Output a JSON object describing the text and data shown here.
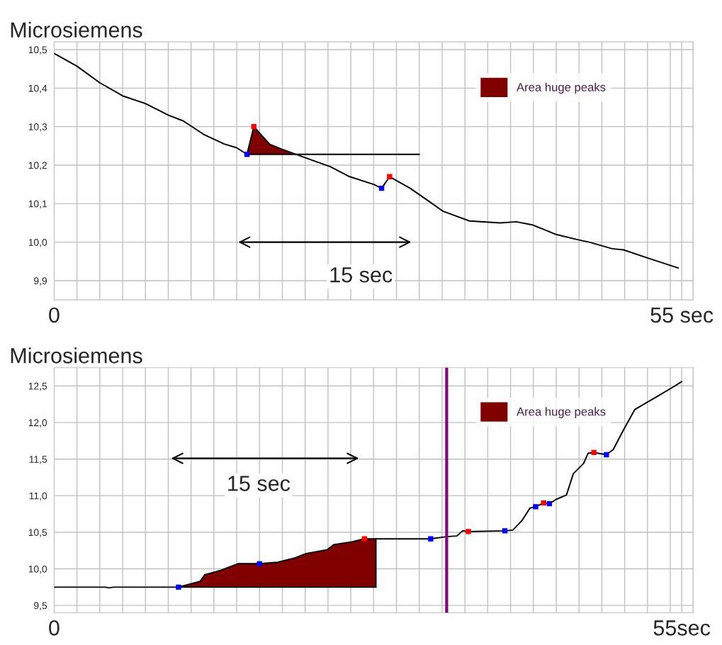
{
  "chart_data": [
    {
      "type": "line",
      "ylabel": "Microsiemens",
      "xlim": [
        0,
        56
      ],
      "xticks": [
        0,
        {
          "value": 55,
          "label": "55 sec"
        }
      ],
      "ylim": [
        9.85,
        10.52
      ],
      "yticks": [
        {
          "value": 9.9,
          "label": "9,9"
        },
        {
          "value": 10.0,
          "label": "10,0"
        },
        {
          "value": 10.1,
          "label": "10,1"
        },
        {
          "value": 10.2,
          "label": "10,2"
        },
        {
          "value": 10.3,
          "label": "10,3"
        },
        {
          "value": 10.4,
          "label": "10,4"
        },
        {
          "value": 10.5,
          "label": "10,5"
        }
      ],
      "grid": true,
      "legend": "top right",
      "annotations": [
        "15 sec"
      ],
      "series": [
        {
          "type": "area",
          "name": "Area huge peaks",
          "color": "#800000",
          "x": [
            16.9,
            17.5,
            18.9,
            19.9,
            21.0
          ],
          "values": [
            10.228,
            10.3,
            10.254,
            10.242,
            10.228
          ]
        },
        {
          "color": "#000000",
          "x": [
            0,
            2.0,
            4.0,
            6.0,
            8.0,
            10.0,
            11.3,
            13.1,
            14.9,
            16.0,
            16.9,
            17.5,
            18.9,
            19.9,
            21.0,
            22.5,
            24.2,
            25.9,
            28.0,
            28.7,
            29.4,
            31.2,
            32.9,
            34.1,
            36.4,
            39.1,
            40.5,
            41.9,
            44.0,
            45.8,
            46.9,
            48.9,
            49.9,
            51.9,
            54.7
          ],
          "values": [
            10.49,
            10.457,
            10.414,
            10.38,
            10.36,
            10.33,
            10.315,
            10.28,
            10.255,
            10.245,
            10.228,
            10.3,
            10.254,
            10.242,
            10.23,
            10.214,
            10.196,
            10.17,
            10.15,
            10.14,
            10.17,
            10.14,
            10.105,
            10.08,
            10.055,
            10.05,
            10.053,
            10.045,
            10.02,
            10.007,
            10.0,
            9.983,
            9.98,
            9.96,
            9.933
          ]
        },
        {
          "color": "#000000",
          "x": [
            16.9,
            32.0
          ],
          "values": [
            10.228,
            10.228
          ]
        },
        {
          "type": "scatter",
          "color": "#0000ff",
          "marker": "square",
          "x": [
            16.9,
            28.7
          ],
          "values": [
            10.228,
            10.14
          ]
        },
        {
          "type": "scatter",
          "color": "#ff0000",
          "marker": "square",
          "x": [
            17.5,
            29.4
          ],
          "values": [
            10.3,
            10.17
          ]
        }
      ]
    },
    {
      "type": "line",
      "ylabel": "Microsiemens",
      "xlim": [
        0,
        56
      ],
      "xticks": [
        0,
        {
          "value": 55,
          "label": "55sec"
        }
      ],
      "ylim": [
        9.4,
        12.75
      ],
      "yticks": [
        {
          "value": 9.5,
          "label": "9,5"
        },
        {
          "value": 10.0,
          "label": "10,0"
        },
        {
          "value": 10.5,
          "label": "10,5"
        },
        {
          "value": 11.0,
          "label": "11,0"
        },
        {
          "value": 11.5,
          "label": "11,5"
        },
        {
          "value": 12.0,
          "label": "12,0"
        },
        {
          "value": 12.5,
          "label": "12,5"
        }
      ],
      "grid": true,
      "legend": "top right",
      "annotations": [
        "15 sec"
      ],
      "ref_lines": [
        {
          "axis": "x",
          "value": 34.4,
          "color": "#800080"
        }
      ],
      "series": [
        {
          "type": "area",
          "name": "Area huge peaks",
          "color": "#800000",
          "x": [
            10.9,
            12.8,
            13.2,
            14.6,
            16.1,
            18.0,
            19.6,
            21.1,
            22.1,
            23.9,
            24.5,
            26.1,
            27.2,
            28.2
          ],
          "values": [
            9.75,
            9.83,
            9.92,
            9.98,
            10.07,
            10.07,
            10.09,
            10.15,
            10.21,
            10.26,
            10.33,
            10.37,
            10.41,
            10.41
          ]
        },
        {
          "color": "#000000",
          "x": [
            0,
            4.5,
            4.8,
            5.2,
            10.9,
            12.8,
            13.2,
            14.6,
            16.1,
            18.0,
            19.6,
            21.1,
            22.1,
            23.9,
            24.5,
            26.1,
            27.2,
            28.2,
            33.0,
            34.4,
            35.3,
            35.8,
            36.3,
            39.5,
            40.2,
            41.0,
            41.7,
            42.2,
            42.9,
            43.4,
            44.0,
            44.9,
            45.5,
            46.4,
            46.8,
            47.3,
            48.4,
            49.0,
            49.9,
            50.9,
            52.9,
            54.3,
            55.0
          ],
          "values": [
            9.75,
            9.75,
            9.74,
            9.75,
            9.75,
            9.83,
            9.92,
            9.98,
            10.07,
            10.07,
            10.09,
            10.15,
            10.21,
            10.26,
            10.33,
            10.37,
            10.41,
            10.41,
            10.41,
            10.44,
            10.45,
            10.52,
            10.51,
            10.52,
            10.53,
            10.66,
            10.83,
            10.85,
            10.9,
            10.89,
            10.95,
            11.01,
            11.3,
            11.44,
            11.58,
            11.59,
            11.56,
            11.63,
            11.9,
            12.18,
            12.36,
            12.49,
            12.56
          ]
        },
        {
          "color": "#000000",
          "x": [
            28.2,
            28.2
          ],
          "values": [
            9.75,
            10.41
          ]
        },
        {
          "color": "#000000",
          "x": [
            10.9,
            28.2
          ],
          "values": [
            9.75,
            9.75
          ]
        },
        {
          "type": "scatter",
          "color": "#0000ff",
          "marker": "square",
          "x": [
            10.9,
            18.0,
            33.0,
            39.5,
            42.2,
            43.4,
            48.4
          ],
          "values": [
            9.75,
            10.07,
            10.41,
            10.52,
            10.85,
            10.89,
            11.56
          ]
        },
        {
          "type": "scatter",
          "color": "#ff0000",
          "marker": "square",
          "x": [
            27.2,
            36.3,
            42.9,
            47.3
          ],
          "values": [
            10.41,
            10.51,
            10.9,
            11.59
          ]
        }
      ]
    }
  ]
}
